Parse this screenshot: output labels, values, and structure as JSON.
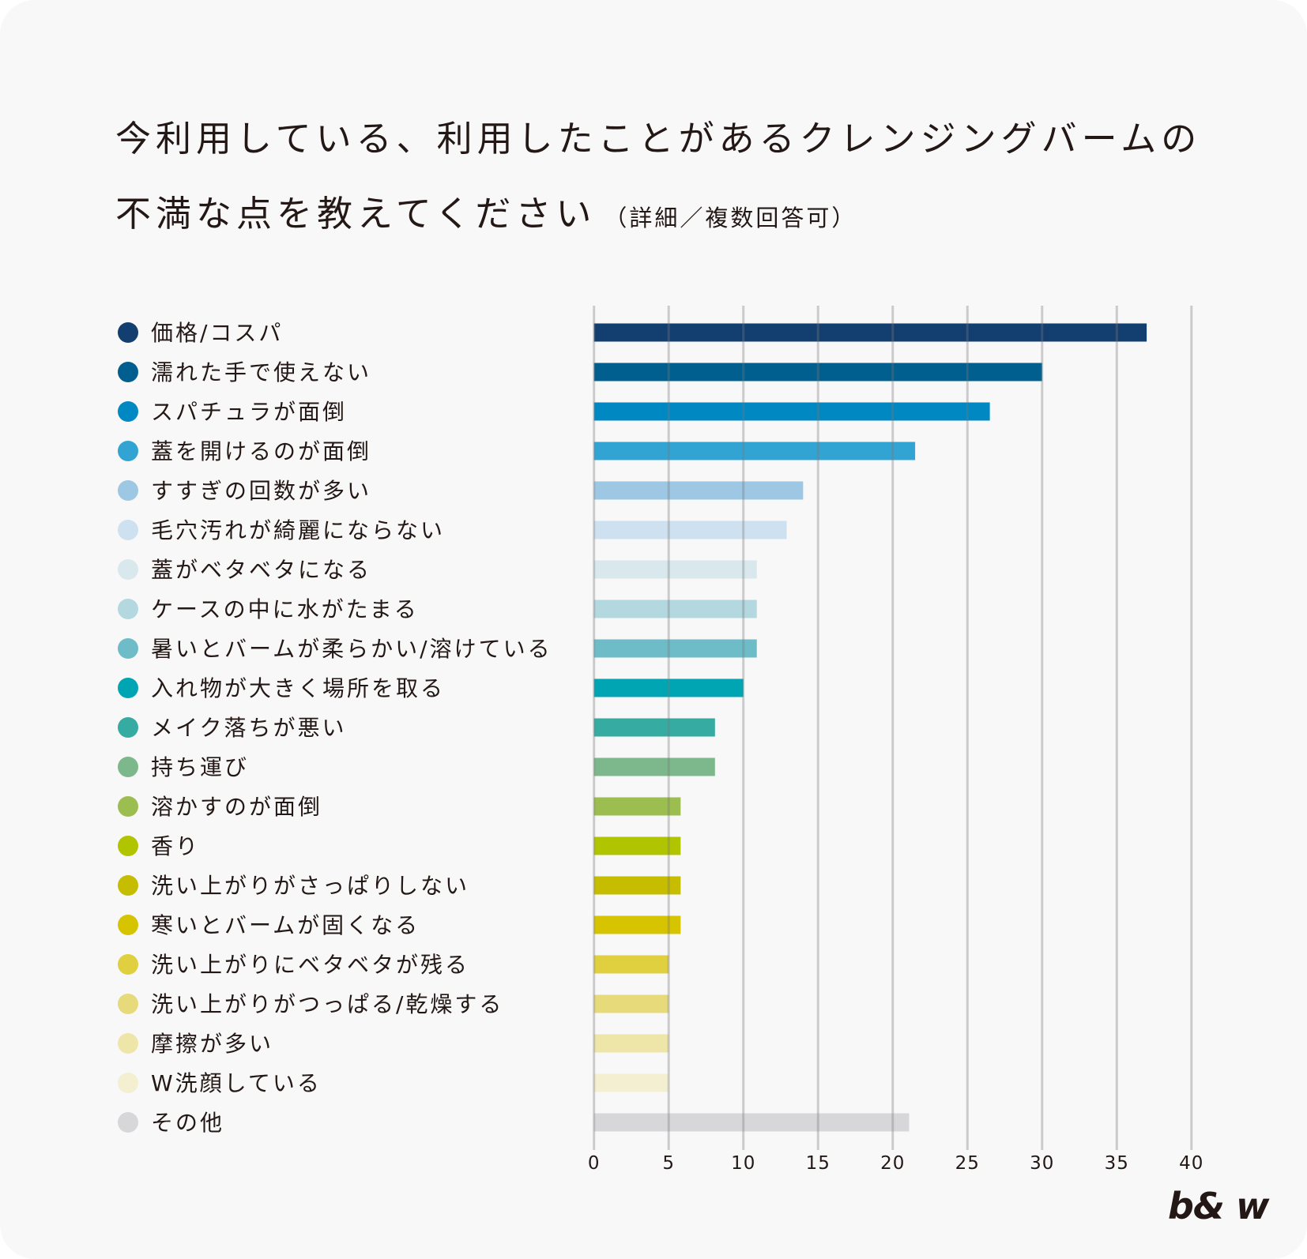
{
  "title": {
    "line1": "今利用している、利用したことがあるクレンジングバームの",
    "line2": "不満な点を教えてください",
    "note": "（詳細／複数回答可）"
  },
  "logo": "b& w",
  "chart_data": {
    "type": "bar",
    "orientation": "horizontal",
    "title": "今利用している、利用したことがあるクレンジングバームの不満な点を教えてください（詳細／複数回答可）",
    "xlabel": "",
    "ylabel": "",
    "xlim": [
      0,
      40
    ],
    "xticks": [
      "0",
      "5",
      "10",
      "15",
      "20",
      "25",
      "30",
      "35",
      "40"
    ],
    "grid": "vertical",
    "legend": "left",
    "categories": [
      "価格/コスパ",
      "濡れた手で使えない",
      "スパチュラが面倒",
      "蓋を開けるのが面倒",
      "すすぎの回数が多い",
      "毛穴汚れが綺麗にならない",
      "蓋がベタベタになる",
      "ケースの中に水がたまる",
      "暑いとバームが柔らかい/溶けている",
      "入れ物が大きく場所を取る",
      "メイク落ちが悪い",
      "持ち運び",
      "溶かすのが面倒",
      "香り",
      "洗い上がりがさっぱりしない",
      "寒いとバームが固くなる",
      "洗い上がりにベタベタが残る",
      "洗い上がりがつっぱる/乾燥する",
      "摩擦が多い",
      "W洗顔している",
      "その他"
    ],
    "values": [
      37,
      30,
      26.5,
      21.5,
      14,
      12.9,
      10.9,
      10.9,
      10.9,
      10,
      8.1,
      8.1,
      5.8,
      5.8,
      5.8,
      5.8,
      5,
      5,
      5,
      5,
      21.1
    ],
    "colors": [
      "#133f70",
      "#005f8f",
      "#0088c3",
      "#32a4d4",
      "#9dc7e3",
      "#cee1f0",
      "#d8e8ec",
      "#b3d8df",
      "#6ebcc8",
      "#00a5b3",
      "#35aba2",
      "#7db88c",
      "#9cbd50",
      "#b0c400",
      "#c6bc00",
      "#d7c400",
      "#e0cf3e",
      "#e6da7a",
      "#eee5a8",
      "#f3efd0",
      "#d7d7d9"
    ]
  }
}
